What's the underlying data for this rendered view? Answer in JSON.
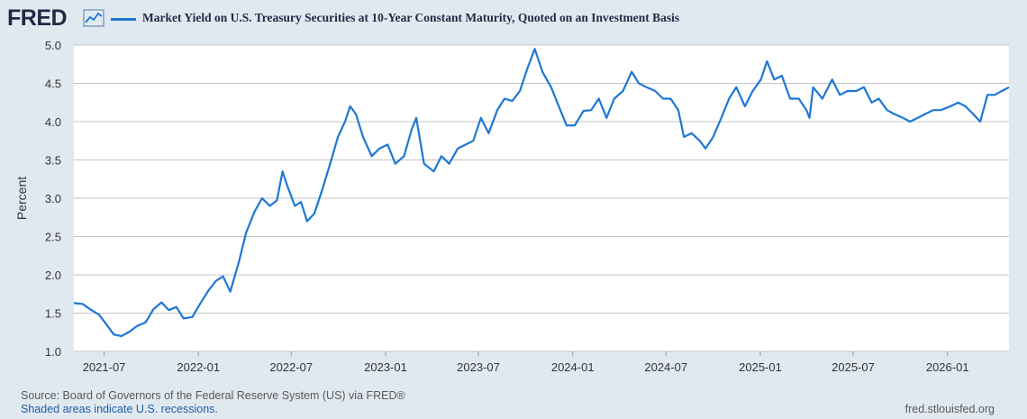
{
  "header": {
    "logo_text": "FRED",
    "logo_icon": "line-graph-icon",
    "series_title": "Market Yield on U.S. Treasury Securities at 10-Year Constant Maturity, Quoted on an Investment Basis"
  },
  "footer": {
    "source": "Source: Board of Governors of the Federal Reserve System (US) via FRED®",
    "recession_note": "Shaded areas indicate U.S. recessions.",
    "url": "fred.stlouisfed.org"
  },
  "colors": {
    "series": "#1f77d4",
    "background": "#e1e9f0",
    "plot_background": "#ffffff",
    "grid": "#c5c5c5"
  },
  "chart_data": {
    "type": "line",
    "title": "Market Yield on U.S. Treasury Securities at 10-Year Constant Maturity, Quoted on an Investment Basis",
    "xlabel": "",
    "ylabel": "Percent",
    "ylim": [
      1.0,
      5.0
    ],
    "yticks": [
      "1.0",
      "1.5",
      "2.0",
      "2.5",
      "3.0",
      "3.5",
      "4.0",
      "4.5",
      "5.0"
    ],
    "xlim": [
      "2021-05-03",
      "2026-05-01"
    ],
    "xticks": [
      "2021-07",
      "2022-01",
      "2022-07",
      "2023-01",
      "2023-07",
      "2024-01",
      "2024-07",
      "2025-01",
      "2025-07",
      "2026-01"
    ],
    "grid": true,
    "legend": "top-left",
    "series": [
      {
        "name": "Market Yield on U.S. Treasury Securities at 10-Year Constant Maturity, Quoted on an Investment Basis",
        "x": [
          "2021-05-03",
          "2021-05-20",
          "2021-06-04",
          "2021-06-21",
          "2021-07-06",
          "2021-07-20",
          "2021-08-04",
          "2021-08-20",
          "2021-09-03",
          "2021-09-20",
          "2021-10-05",
          "2021-10-21",
          "2021-11-04",
          "2021-11-19",
          "2021-12-03",
          "2021-12-20",
          "2022-01-04",
          "2022-01-21",
          "2022-02-04",
          "2022-02-18",
          "2022-03-04",
          "2022-03-21",
          "2022-04-04",
          "2022-04-20",
          "2022-05-05",
          "2022-05-20",
          "2022-06-03",
          "2022-06-14",
          "2022-06-24",
          "2022-07-08",
          "2022-07-20",
          "2022-08-01",
          "2022-08-15",
          "2022-08-30",
          "2022-09-15",
          "2022-09-30",
          "2022-10-14",
          "2022-10-24",
          "2022-11-04",
          "2022-11-18",
          "2022-12-05",
          "2022-12-20",
          "2023-01-05",
          "2023-01-20",
          "2023-02-06",
          "2023-02-21",
          "2023-03-02",
          "2023-03-17",
          "2023-04-05",
          "2023-04-20",
          "2023-05-05",
          "2023-05-22",
          "2023-06-06",
          "2023-06-21",
          "2023-07-06",
          "2023-07-21",
          "2023-08-07",
          "2023-08-21",
          "2023-09-05",
          "2023-09-20",
          "2023-10-05",
          "2023-10-19",
          "2023-11-03",
          "2023-11-20",
          "2023-12-05",
          "2023-12-20",
          "2024-01-05",
          "2024-01-22",
          "2024-02-06",
          "2024-02-21",
          "2024-03-07",
          "2024-03-22",
          "2024-04-08",
          "2024-04-25",
          "2024-05-09",
          "2024-05-24",
          "2024-06-10",
          "2024-06-25",
          "2024-07-10",
          "2024-07-25",
          "2024-08-05",
          "2024-08-20",
          "2024-09-05",
          "2024-09-16",
          "2024-10-01",
          "2024-10-17",
          "2024-11-01",
          "2024-11-15",
          "2024-12-02",
          "2024-12-17",
          "2025-01-02",
          "2025-01-14",
          "2025-01-28",
          "2025-02-12",
          "2025-02-28",
          "2025-03-17",
          "2025-04-01",
          "2025-04-07",
          "2025-04-14",
          "2025-05-02",
          "2025-05-21",
          "2025-06-05",
          "2025-06-20",
          "2025-07-07",
          "2025-07-22",
          "2025-08-06",
          "2025-08-20",
          "2025-09-05",
          "2025-09-19",
          "2025-10-06",
          "2025-10-20",
          "2025-11-04",
          "2025-11-19",
          "2025-12-04",
          "2025-12-19",
          "2026-01-07",
          "2026-01-22",
          "2026-02-05",
          "2026-02-20",
          "2026-03-06",
          "2026-03-20",
          "2026-04-03",
          "2026-04-17",
          "2026-05-01"
        ],
        "y": [
          1.63,
          1.62,
          1.55,
          1.48,
          1.35,
          1.22,
          1.2,
          1.26,
          1.33,
          1.38,
          1.55,
          1.64,
          1.54,
          1.58,
          1.43,
          1.45,
          1.62,
          1.8,
          1.92,
          1.98,
          1.78,
          2.17,
          2.55,
          2.82,
          3.0,
          2.9,
          2.97,
          3.35,
          3.15,
          2.9,
          2.95,
          2.7,
          2.8,
          3.1,
          3.45,
          3.8,
          4.0,
          4.2,
          4.1,
          3.8,
          3.55,
          3.65,
          3.7,
          3.45,
          3.55,
          3.9,
          4.05,
          3.45,
          3.35,
          3.55,
          3.45,
          3.65,
          3.7,
          3.75,
          4.05,
          3.85,
          4.15,
          4.3,
          4.27,
          4.4,
          4.7,
          4.95,
          4.65,
          4.45,
          4.2,
          3.95,
          3.95,
          4.14,
          4.15,
          4.3,
          4.05,
          4.3,
          4.4,
          4.65,
          4.5,
          4.45,
          4.4,
          4.3,
          4.3,
          4.15,
          3.8,
          3.85,
          3.75,
          3.65,
          3.8,
          4.05,
          4.3,
          4.45,
          4.2,
          4.4,
          4.55,
          4.79,
          4.55,
          4.6,
          4.3,
          4.3,
          4.15,
          4.05,
          4.45,
          4.3,
          4.55,
          4.35,
          4.4,
          4.4,
          4.45,
          4.25,
          4.3,
          4.15,
          4.1,
          4.05,
          4.0,
          4.05,
          4.1,
          4.15,
          4.15,
          4.2,
          4.25,
          4.2,
          4.1,
          4.0,
          4.35,
          4.35,
          4.4,
          4.45
        ]
      }
    ]
  }
}
